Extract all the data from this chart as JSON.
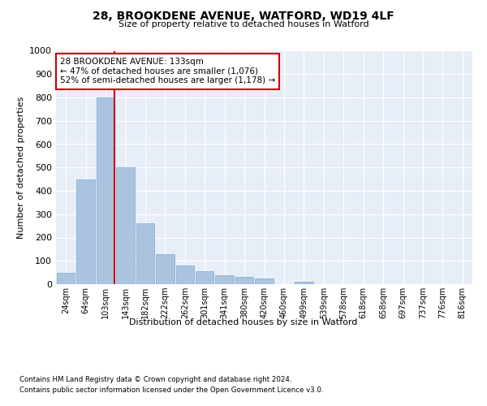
{
  "title1": "28, BROOKDENE AVENUE, WATFORD, WD19 4LF",
  "title2": "Size of property relative to detached houses in Watford",
  "xlabel": "Distribution of detached houses by size in Watford",
  "ylabel": "Number of detached properties",
  "footer1": "Contains HM Land Registry data © Crown copyright and database right 2024.",
  "footer2": "Contains public sector information licensed under the Open Government Licence v3.0.",
  "annotation_line1": "28 BROOKDENE AVENUE: 133sqm",
  "annotation_line2": "← 47% of detached houses are smaller (1,076)",
  "annotation_line3": "52% of semi-detached houses are larger (1,178) →",
  "bar_color": "#aac4e0",
  "bar_edge_color": "#7aaace",
  "ref_line_color": "#cc0000",
  "background_color": "#e8eef8",
  "categories": [
    "24sqm",
    "64sqm",
    "103sqm",
    "143sqm",
    "182sqm",
    "222sqm",
    "262sqm",
    "301sqm",
    "341sqm",
    "380sqm",
    "420sqm",
    "460sqm",
    "499sqm",
    "539sqm",
    "578sqm",
    "618sqm",
    "658sqm",
    "697sqm",
    "737sqm",
    "776sqm",
    "816sqm"
  ],
  "values": [
    50,
    450,
    800,
    500,
    260,
    130,
    80,
    55,
    40,
    30,
    25,
    0,
    10,
    0,
    0,
    0,
    0,
    0,
    0,
    0,
    0
  ],
  "ylim": [
    0,
    1000
  ],
  "yticks": [
    0,
    100,
    200,
    300,
    400,
    500,
    600,
    700,
    800,
    900,
    1000
  ]
}
